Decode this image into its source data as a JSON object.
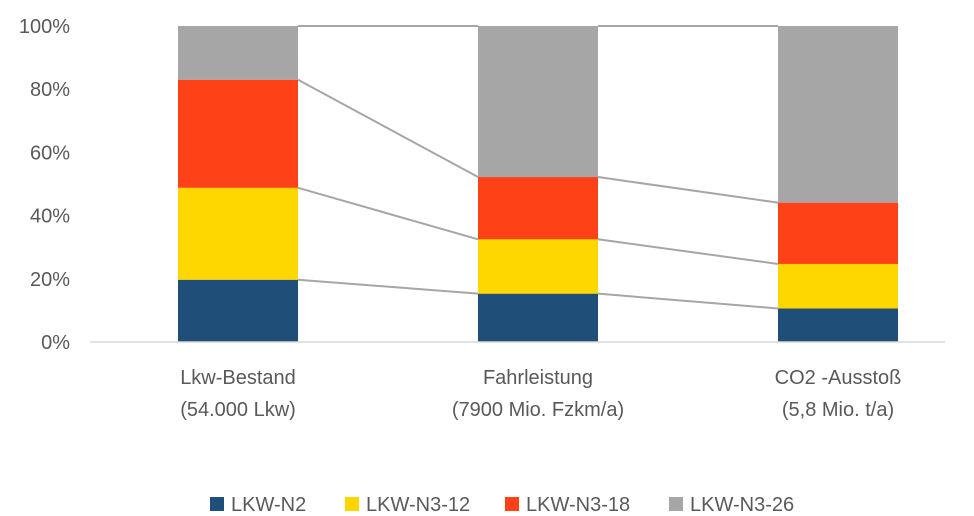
{
  "chart_data": {
    "type": "bar",
    "stacked": true,
    "normalized": true,
    "categories": [
      [
        "Lkw-Bestand",
        "(54.000 Lkw)"
      ],
      [
        "Fahrleistung",
        "(7900 Mio. Fzkm/a)"
      ],
      [
        "CO2 -Ausstoß",
        "(5,8 Mio. t/a)"
      ]
    ],
    "series": [
      {
        "name": "LKW-N2",
        "color": "#1F4E79",
        "values": [
          19.7,
          15.3,
          10.6
        ]
      },
      {
        "name": "LKW-N3-12",
        "color": "#FFD700",
        "values": [
          29.1,
          17.2,
          14.1
        ]
      },
      {
        "name": "LKW-N3-18",
        "color": "#FF4117",
        "values": [
          34.2,
          19.7,
          19.4
        ]
      },
      {
        "name": "LKW-N3-26",
        "color": "#A6A6A6",
        "values": [
          17.0,
          47.8,
          55.9
        ]
      }
    ],
    "yticks": [
      "0%",
      "20%",
      "40%",
      "60%",
      "80%",
      "100%"
    ],
    "ylim": [
      0,
      100
    ],
    "connector_lines": true,
    "connector_color": "#A6A6A6",
    "grid": false,
    "legend_position": "bottom"
  }
}
